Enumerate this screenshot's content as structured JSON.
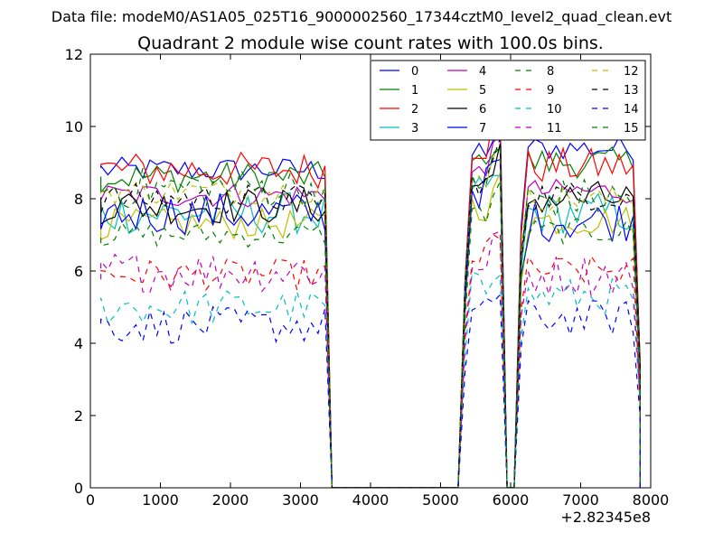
{
  "chart_data": {
    "type": "line",
    "suptitle": "Data file: modeM0/AS1A05_025T16_9000002560_17344cztM0_level2_quad_clean.evt",
    "title": "Quadrant 2 module wise count rates with 100.0s bins.",
    "xlabel": "",
    "ylabel": "",
    "x_offset_label": "+2.82345e8",
    "xlim": [
      0,
      8000
    ],
    "ylim": [
      0,
      12
    ],
    "xticks": [
      0,
      1000,
      2000,
      3000,
      4000,
      5000,
      6000,
      7000,
      8000
    ],
    "yticks": [
      0,
      2,
      4,
      6,
      8,
      10,
      12
    ],
    "segments": [
      {
        "start": 150,
        "end": 3350,
        "step": 100
      },
      {
        "start": 5350,
        "end": 5850,
        "step": 100
      },
      {
        "start": 6150,
        "end": 7850,
        "step": 100
      }
    ],
    "legend": {
      "placement": "top-right",
      "columns": 4
    },
    "series": [
      {
        "name": "0",
        "color": "#0000ff",
        "style": "solid",
        "level_a": 8.8,
        "level_b": 9.2,
        "level_c": 9.4
      },
      {
        "name": "1",
        "color": "#008000",
        "style": "solid",
        "level_a": 8.6,
        "level_b": 8.9,
        "level_c": 9.0
      },
      {
        "name": "2",
        "color": "#ff0000",
        "style": "solid",
        "level_a": 8.8,
        "level_b": 9.5,
        "level_c": 8.9
      },
      {
        "name": "3",
        "color": "#00bfbf",
        "style": "solid",
        "level_a": 7.6,
        "level_b": 8.0,
        "level_c": 7.6
      },
      {
        "name": "4",
        "color": "#bf00bf",
        "style": "solid",
        "level_a": 8.1,
        "level_b": 8.7,
        "level_c": 8.2
      },
      {
        "name": "5",
        "color": "#bfbf00",
        "style": "solid",
        "level_a": 7.3,
        "level_b": 7.8,
        "level_c": 7.4
      },
      {
        "name": "6",
        "color": "#000000",
        "style": "solid",
        "level_a": 7.8,
        "level_b": 8.4,
        "level_c": 8.0
      },
      {
        "name": "7",
        "color": "#0000ff",
        "style": "solid",
        "level_a": 7.6,
        "level_b": 8.3,
        "level_c": 7.4
      },
      {
        "name": "8",
        "color": "#008000",
        "style": "dashed",
        "level_a": 7.0,
        "level_b": 7.6,
        "level_c": 7.1
      },
      {
        "name": "9",
        "color": "#ff0000",
        "style": "dashed",
        "level_a": 5.9,
        "level_b": 6.4,
        "level_c": 6.0
      },
      {
        "name": "10",
        "color": "#00bfbf",
        "style": "dashed",
        "level_a": 5.0,
        "level_b": 5.5,
        "level_c": 5.3
      },
      {
        "name": "11",
        "color": "#bf00bf",
        "style": "dashed",
        "level_a": 6.0,
        "level_b": 6.3,
        "level_c": 5.9
      },
      {
        "name": "12",
        "color": "#bfbf00",
        "style": "dashed",
        "level_a": 8.2,
        "level_b": 8.5,
        "level_c": 8.0
      },
      {
        "name": "13",
        "color": "#000000",
        "style": "dashed",
        "level_a": 8.0,
        "level_b": 8.5,
        "level_c": 8.1
      },
      {
        "name": "14",
        "color": "#0000ff",
        "style": "dashed",
        "level_a": 4.5,
        "level_b": 4.8,
        "level_c": 4.7
      },
      {
        "name": "15",
        "color": "#008000",
        "style": "dashed",
        "level_a": 8.3,
        "level_b": 8.6,
        "level_c": 8.0
      }
    ]
  }
}
